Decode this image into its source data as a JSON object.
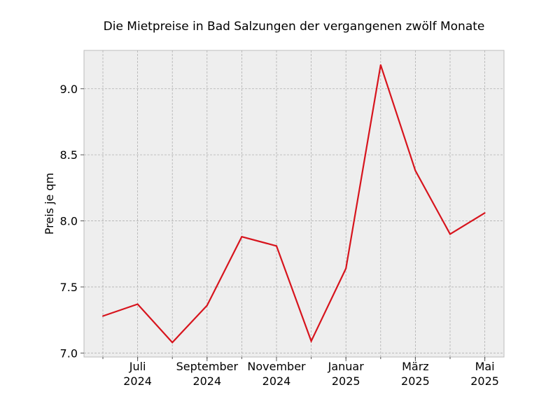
{
  "chart_data": {
    "type": "line",
    "title": "Die Mietpreise in Bad Salzungen der vergangenen zwölf Monate",
    "xlabel": "",
    "ylabel": "Preis je qm",
    "x": [
      "2024-06",
      "2024-07",
      "2024-08",
      "2024-09",
      "2024-10",
      "2024-11",
      "2024-12",
      "2025-01",
      "2025-02",
      "2025-03",
      "2025-04",
      "2025-05"
    ],
    "series": [
      {
        "values": [
          7.28,
          7.37,
          7.08,
          7.36,
          7.88,
          7.81,
          7.09,
          7.64,
          9.18,
          8.38,
          7.9,
          8.06
        ]
      }
    ],
    "ylim": [
      6.97,
      9.29
    ],
    "yticks": [
      "7.0",
      "7.5",
      "8.0",
      "8.5",
      "9.0"
    ],
    "xtick_labels": [
      {
        "month": "Juli",
        "year": "2024",
        "at": "2024-07"
      },
      {
        "month": "September",
        "year": "2024",
        "at": "2024-09"
      },
      {
        "month": "November",
        "year": "2024",
        "at": "2024-11"
      },
      {
        "month": "Januar",
        "year": "2025",
        "at": "2025-01"
      },
      {
        "month": "März",
        "year": "2025",
        "at": "2025-03"
      },
      {
        "month": "Mai",
        "year": "2025",
        "at": "2025-05"
      }
    ],
    "grid": true,
    "line_color": "#d7141d",
    "background_color": "#eeeeee"
  }
}
